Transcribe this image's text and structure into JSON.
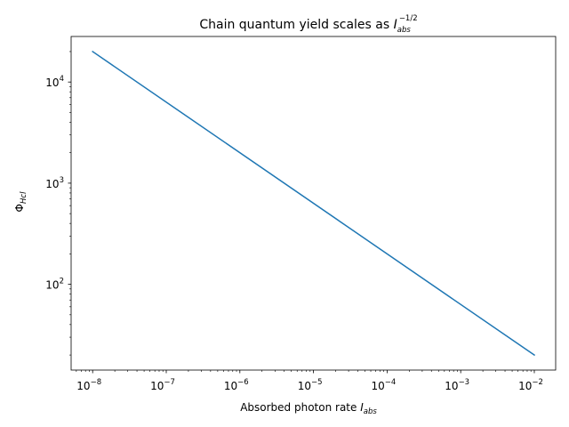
{
  "chart_data": {
    "type": "line",
    "title": {
      "base": "Chain quantum yield scales as ",
      "symbol": "I",
      "sub": "abs",
      "sup": "−1/2"
    },
    "xlabel": {
      "base": "Absorbed photon rate ",
      "symbol": "I",
      "sub": "abs"
    },
    "ylabel": {
      "symbol": "Φ",
      "sub": "Hcl"
    },
    "xscale": "log",
    "yscale": "log",
    "xlim": [
      5.1e-09,
      0.0195
    ],
    "ylim": [
      14.2,
      28200
    ],
    "x_ticks": [
      {
        "value": 1e-08,
        "base": "10",
        "exp": "−8"
      },
      {
        "value": 1e-07,
        "base": "10",
        "exp": "−7"
      },
      {
        "value": 1e-06,
        "base": "10",
        "exp": "−6"
      },
      {
        "value": 1e-05,
        "base": "10",
        "exp": "−5"
      },
      {
        "value": 0.0001,
        "base": "10",
        "exp": "−4"
      },
      {
        "value": 0.001,
        "base": "10",
        "exp": "−3"
      },
      {
        "value": 0.01,
        "base": "10",
        "exp": "−2"
      }
    ],
    "y_ticks": [
      {
        "value": 100,
        "base": "10",
        "exp": "2"
      },
      {
        "value": 1000,
        "base": "10",
        "exp": "3"
      },
      {
        "value": 10000,
        "base": "10",
        "exp": "4"
      }
    ],
    "grid": false,
    "series": [
      {
        "color": "#1f77b4",
        "x": [
          1e-08,
          0.01
        ],
        "y": [
          20000,
          20
        ]
      }
    ]
  }
}
